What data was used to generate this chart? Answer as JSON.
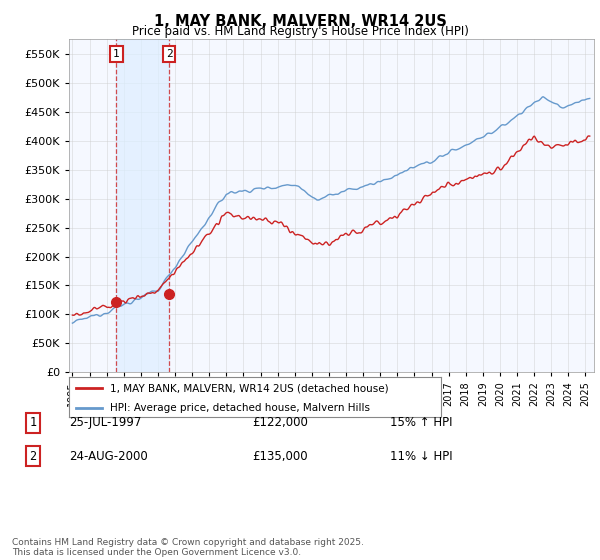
{
  "title": "1, MAY BANK, MALVERN, WR14 2US",
  "subtitle": "Price paid vs. HM Land Registry's House Price Index (HPI)",
  "line1_label": "1, MAY BANK, MALVERN, WR14 2US (detached house)",
  "line2_label": "HPI: Average price, detached house, Malvern Hills",
  "line1_color": "#cc2222",
  "line2_color": "#6699cc",
  "shade_color": "#ddeeff",
  "marker1_x": 1997.57,
  "marker1_y": 122000,
  "marker2_x": 2000.65,
  "marker2_y": 135000,
  "vline1_x": 1997.57,
  "vline2_x": 2000.65,
  "transaction1_date": "25-JUL-1997",
  "transaction1_price": "£122,000",
  "transaction1_hpi": "15% ↑ HPI",
  "transaction2_date": "24-AUG-2000",
  "transaction2_price": "£135,000",
  "transaction2_hpi": "11% ↓ HPI",
  "ylim": [
    0,
    575000
  ],
  "yticks": [
    0,
    50000,
    100000,
    150000,
    200000,
    250000,
    300000,
    350000,
    400000,
    450000,
    500000,
    550000
  ],
  "xlim": [
    1994.8,
    2025.5
  ],
  "footer": "Contains HM Land Registry data © Crown copyright and database right 2025.\nThis data is licensed under the Open Government Licence v3.0.",
  "bg_color": "#f5f8ff",
  "grid_color": "#cccccc"
}
